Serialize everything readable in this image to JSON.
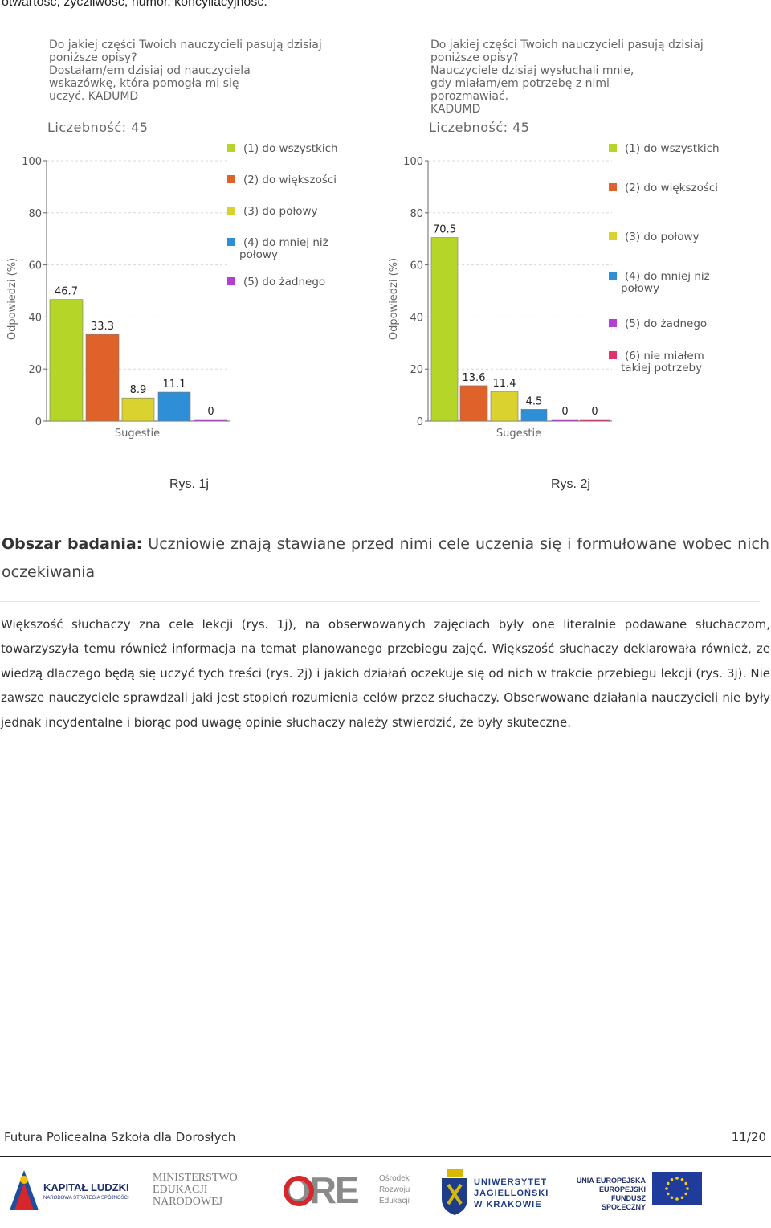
{
  "intro_line": "otwartość, życzliwość, humor, koncyliacyjność.",
  "colors": {
    "c1": "#b5d628",
    "c2": "#e0622b",
    "c3": "#d9d22f",
    "c4": "#2e8fd6",
    "c5": "#b23fd1",
    "c6": "#e0336e",
    "grid": "#d7d7d7",
    "axis": "#666666"
  },
  "chart_data": [
    {
      "type": "bar",
      "title": "Do jakiej części Twoich nauczycieli pasują dzisiaj\nponiższe opisy?\nDostałam/em dzisiaj od nauczyciela\nwskazówkę, która pomogła mi się\nuczyć. KADUMD",
      "count_label": "Liczebność: 45",
      "ylabel": "Odpowiedzi (%)",
      "xlabel": "Sugestie",
      "ylim": [
        0,
        100
      ],
      "yticks": [
        0,
        20,
        40,
        60,
        80,
        100
      ],
      "series": [
        {
          "name": "(1) do wszystkich",
          "value": 46.7,
          "label": "46.7",
          "color": "#b5d628"
        },
        {
          "name": "(2) do większości",
          "value": 33.3,
          "label": "33.3",
          "color": "#e0622b"
        },
        {
          "name": "(3) do połowy",
          "value": 8.9,
          "label": "8.9",
          "color": "#d9d22f"
        },
        {
          "name": "(4) do mniej niż\npołowy",
          "value": 11.1,
          "label": "11.1",
          "color": "#2e8fd6"
        },
        {
          "name": "(5) do żadnego",
          "value": 0,
          "label": "0",
          "color": "#b23fd1"
        }
      ]
    },
    {
      "type": "bar",
      "title": "Do jakiej części Twoich nauczycieli pasują dzisiaj\nponiższe opisy?\nNauczyciele dzisiaj wysłuchali mnie,\ngdy miałam/em potrzebę z nimi\nporozmawiać.\nKADUMD",
      "count_label": "Liczebność: 45",
      "ylabel": "Odpowiedzi (%)",
      "xlabel": "Sugestie",
      "ylim": [
        0,
        100
      ],
      "yticks": [
        0,
        20,
        40,
        60,
        80,
        100
      ],
      "series": [
        {
          "name": "(1) do wszystkich",
          "value": 70.5,
          "label": "70.5",
          "color": "#b5d628"
        },
        {
          "name": "(2) do większości",
          "value": 13.6,
          "label": "13.6",
          "color": "#e0622b"
        },
        {
          "name": "(3) do połowy",
          "value": 11.4,
          "label": "11.4",
          "color": "#d9d22f"
        },
        {
          "name": "(4) do mniej niż\npołowy",
          "value": 4.5,
          "label": "4.5",
          "color": "#2e8fd6"
        },
        {
          "name": "(5) do żadnego",
          "value": 0,
          "label": "0",
          "color": "#b23fd1"
        },
        {
          "name": "(6) nie miałem\ntakiej potrzeby",
          "value": 0,
          "label": "0",
          "color": "#e0336e"
        }
      ]
    }
  ],
  "captions": {
    "fig1": "Rys. 1j",
    "fig2": "Rys. 2j"
  },
  "area": {
    "label": "Obszar badania:",
    "text": " Uczniowie znają stawiane przed nimi cele uczenia się i formułowane wobec nich oczekiwania"
  },
  "paragraph": "Większość słuchaczy zna cele lekcji (rys. 1j), na obserwowanych zajęciach były one literalnie podawane słuchaczom, towarzyszyła temu również informacja na temat planowanego przebiegu zajęć. Większość słuchaczy deklarowała również, ze wiedzą dlaczego będą się uczyć tych treści (rys. 2j) i jakich działań oczekuje się od nich w trakcie przebiegu lekcji (rys. 3j). Nie zawsze nauczyciele sprawdzali jaki jest stopień rozumienia celów przez słuchaczy. Obserwowane działania nauczycieli nie były jednak incydentalne i biorąc pod uwagę opinie słuchaczy należy stwierdzić, że były skuteczne.",
  "footer": {
    "school": "Futura Policealna Szkoła dla Dorosłych",
    "page": "11/20"
  },
  "logos": {
    "kl_title": "KAPITAŁ LUDZKI",
    "kl_sub": "NARODOWA STRATEGIA SPÓJNOŚCI",
    "men_1": "MINISTERSTWO",
    "men_2": "EDUKACJI",
    "men_3": "NARODOWEJ",
    "ore_mark": "ORE",
    "ore_1": "Ośrodek",
    "ore_2": "Rozwoju",
    "ore_3": "Edukacji",
    "uj_1": "UNIWERSYTET",
    "uj_2": "JAGIELLOŃSKI",
    "uj_3": "W KRAKOWIE",
    "ue_1": "UNIA EUROPEJSKA",
    "ue_2": "EUROPEJSKI",
    "ue_3": "FUNDUSZ SPOŁECZNY"
  }
}
